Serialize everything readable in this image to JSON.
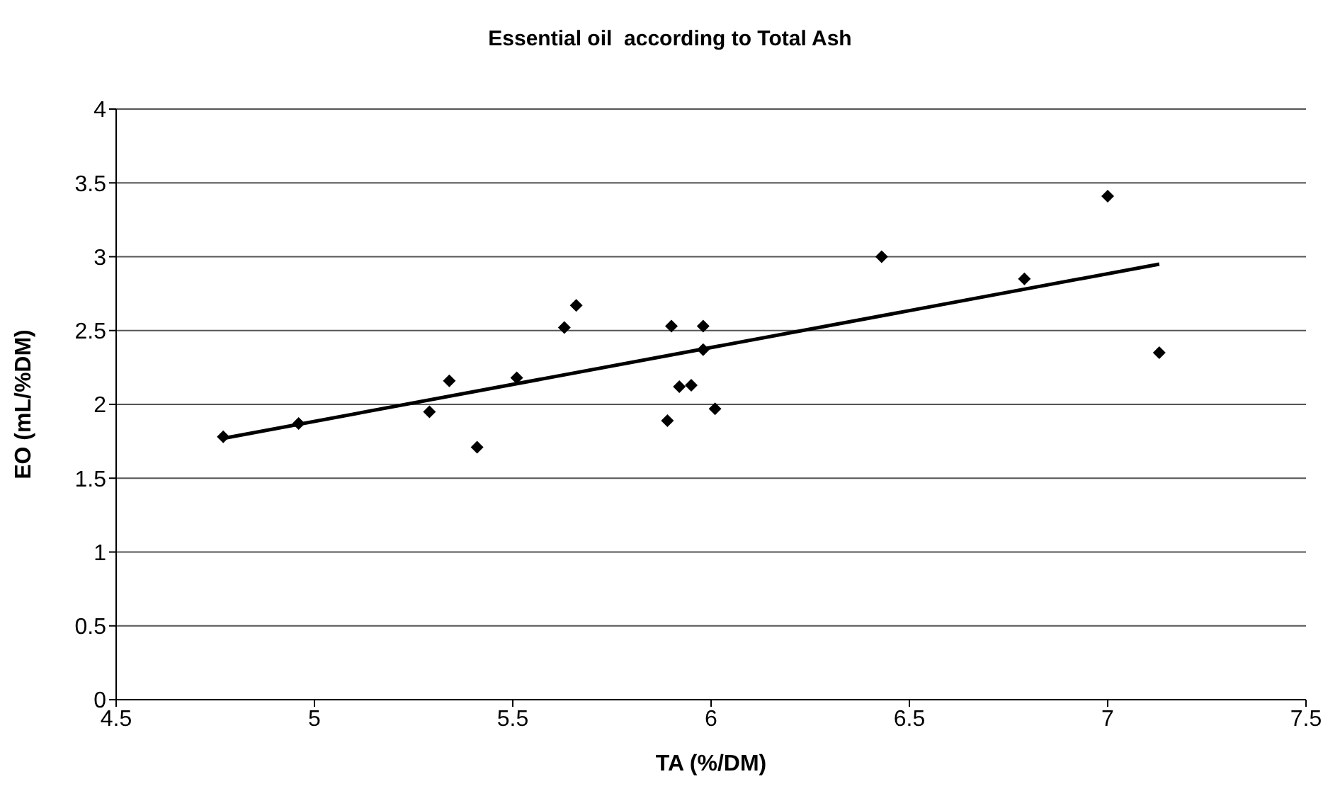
{
  "chart_data": {
    "type": "scatter",
    "title": "Essential oil  according to Total Ash",
    "xlabel": "TA  (%/DM)",
    "ylabel": "EO (mL/%DM)",
    "xlim": [
      4.5,
      7.5
    ],
    "xticks": [
      4.5,
      5,
      5.5,
      6,
      6.5,
      7,
      7.5
    ],
    "ylim": [
      0,
      4
    ],
    "yticks": [
      0,
      0.5,
      1,
      1.5,
      2,
      2.5,
      3,
      3.5,
      4
    ],
    "grid": "y",
    "legend": false,
    "marker": "diamond",
    "series": [
      {
        "color": "#000000",
        "x": [
          4.77,
          4.96,
          5.29,
          5.34,
          5.41,
          5.51,
          5.63,
          5.66,
          5.89,
          5.9,
          5.92,
          5.95,
          5.98,
          5.98,
          6.01,
          6.43,
          6.79,
          7.0,
          7.13
        ],
        "values": [
          1.78,
          1.87,
          1.95,
          2.16,
          1.71,
          2.18,
          2.52,
          2.67,
          1.89,
          2.53,
          2.12,
          2.13,
          2.53,
          2.37,
          1.97,
          3.0,
          2.85,
          3.41,
          2.35
        ]
      },
      {
        "type": "line",
        "color": "#000000",
        "marker": "none",
        "line_style": "solid",
        "x": [
          4.77,
          7.13
        ],
        "values": [
          1.77,
          2.95
        ]
      }
    ]
  }
}
